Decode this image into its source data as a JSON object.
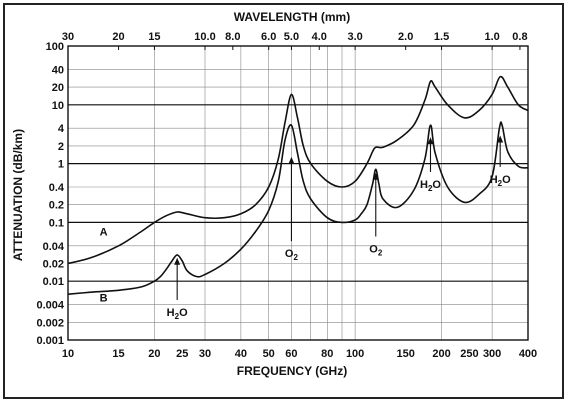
{
  "chart_data": {
    "type": "line",
    "xlabel": "FREQUENCY (GHz)",
    "ylabel": "ATTENUATION (dB/km)",
    "top_axis_label": "WAVELENGTH (mm)",
    "x_scale": "log",
    "y_scale": "log",
    "xlim": [
      10,
      400
    ],
    "ylim": [
      0.001,
      100
    ],
    "grid": true,
    "legend": "none",
    "x_tick_labels": [
      "10",
      "15",
      "20",
      "25",
      "30",
      "40",
      "50",
      "60",
      "80",
      "100",
      "150",
      "200",
      "250",
      "300",
      "400"
    ],
    "x_ticks": [
      10,
      15,
      20,
      25,
      30,
      40,
      50,
      60,
      80,
      100,
      150,
      200,
      250,
      300,
      400
    ],
    "y_ticks": [
      100,
      40,
      20,
      10,
      4,
      2,
      1,
      0.4,
      0.2,
      0.1,
      0.04,
      0.02,
      0.01,
      0.004,
      0.002,
      0.001
    ],
    "y_tick_labels": [
      "100",
      "40",
      "20",
      "10",
      "4",
      "2",
      "1",
      "0.4",
      "0.2",
      "0.1",
      "0.04",
      "0.02",
      "0.01",
      "0.004",
      "0.002",
      "0.001"
    ],
    "top_ticks_mm": [
      30,
      20,
      15,
      10,
      8,
      6,
      5,
      4,
      3,
      2,
      1.5,
      1,
      0.8
    ],
    "top_tick_labels": [
      "30",
      "20",
      "15",
      "10.0",
      "8.0",
      "6.0",
      "5.0",
      "4.0",
      "3.0",
      "2.0",
      "1.5",
      "1.0",
      "0.8"
    ],
    "series": [
      {
        "name": "A",
        "x": [
          10,
          12,
          15,
          18,
          20,
          22,
          24,
          26,
          30,
          35,
          40,
          45,
          50,
          54,
          57,
          60,
          63,
          66,
          70,
          80,
          90,
          100,
          110,
          115,
          118,
          125,
          140,
          160,
          175,
          183,
          190,
          210,
          240,
          270,
          300,
          320,
          340,
          370,
          400
        ],
        "y": [
          0.02,
          0.025,
          0.04,
          0.07,
          0.1,
          0.13,
          0.15,
          0.14,
          0.12,
          0.12,
          0.14,
          0.2,
          0.4,
          1.2,
          5,
          15,
          6,
          2,
          1,
          0.5,
          0.4,
          0.5,
          1.0,
          1.6,
          1.9,
          1.9,
          2.5,
          4.5,
          12,
          25,
          20,
          10,
          6,
          8,
          15,
          30,
          20,
          10,
          8
        ]
      },
      {
        "name": "B",
        "x": [
          10,
          12,
          15,
          18,
          20,
          21,
          22,
          23,
          24,
          25,
          26,
          28,
          30,
          35,
          40,
          45,
          50,
          54,
          57,
          60,
          63,
          66,
          70,
          80,
          90,
          100,
          105,
          110,
          115,
          118,
          121,
          125,
          140,
          160,
          175,
          183,
          190,
          210,
          240,
          270,
          300,
          318,
          325,
          340,
          370,
          400
        ],
        "y": [
          0.006,
          0.0065,
          0.007,
          0.008,
          0.01,
          0.012,
          0.016,
          0.022,
          0.028,
          0.022,
          0.015,
          0.012,
          0.013,
          0.02,
          0.035,
          0.07,
          0.16,
          0.5,
          2.5,
          4.5,
          1.5,
          0.5,
          0.25,
          0.12,
          0.1,
          0.11,
          0.14,
          0.2,
          0.45,
          0.8,
          0.45,
          0.25,
          0.18,
          0.35,
          1.2,
          4.5,
          1.5,
          0.4,
          0.22,
          0.3,
          0.6,
          4,
          4.5,
          1.6,
          0.9,
          0.85
        ]
      }
    ],
    "annotations": [
      {
        "x": 24,
        "y": 0.003,
        "arrow_to_y": 0.025,
        "main": "H",
        "sub": "2",
        "tail": "O"
      },
      {
        "x": 60,
        "y": 0.03,
        "arrow_to_y": 1.3,
        "main": "O",
        "sub": "2",
        "tail": ""
      },
      {
        "x": 118,
        "y": 0.036,
        "arrow_to_y": 0.7,
        "main": "O",
        "sub": "2",
        "tail": ""
      },
      {
        "x": 183,
        "y": 0.45,
        "arrow_to_y": 2.8,
        "main": "H",
        "sub": "2",
        "tail": "O"
      },
      {
        "x": 320,
        "y": 0.55,
        "arrow_to_y": 3.0,
        "main": "H",
        "sub": "2",
        "tail": "O"
      }
    ]
  }
}
